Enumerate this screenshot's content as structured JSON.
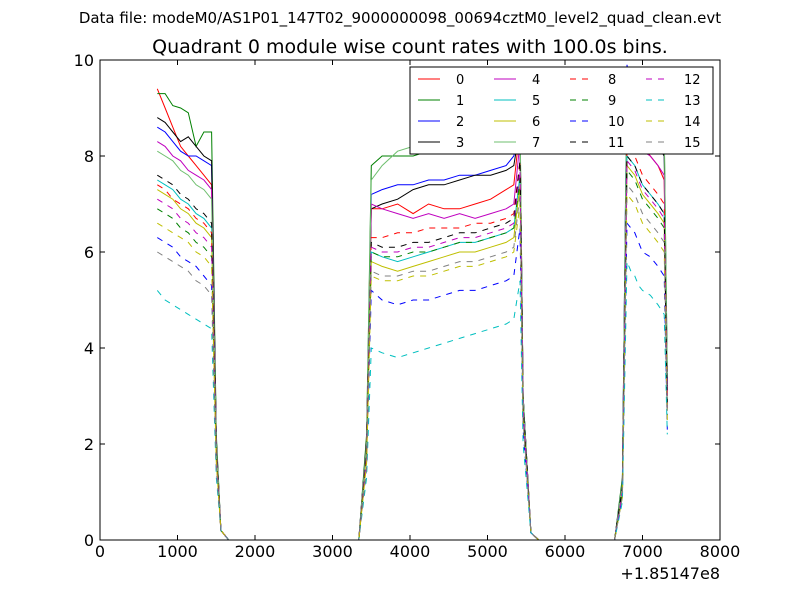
{
  "chart_data": {
    "type": "line",
    "suptitle": "Data file: modeM0/AS1P01_147T02_9000000098_00694cztM0_level2_quad_clean.evt",
    "title": "Quadrant 0 module wise count rates with 100.0s bins.",
    "xlabel": "",
    "ylabel": "",
    "x_offset_label": "+1.85147e8",
    "xlim": [
      0,
      8000
    ],
    "ylim": [
      0,
      10
    ],
    "xticks": [
      0,
      1000,
      2000,
      3000,
      4000,
      5000,
      6000,
      7000,
      8000
    ],
    "yticks": [
      0,
      2,
      4,
      6,
      8,
      10
    ],
    "grid": false,
    "legend_position": "top-right",
    "legend_columns": 4,
    "x": [
      740,
      840,
      940,
      1040,
      1140,
      1240,
      1340,
      1440,
      1500,
      1560,
      1660,
      3340,
      3440,
      3500,
      3640,
      3840,
      4040,
      4240,
      4440,
      4640,
      4840,
      5040,
      5240,
      5340,
      5420,
      5460,
      5560,
      5660,
      6640,
      6740,
      6800,
      6850,
      6900,
      6950,
      7000,
      7100,
      7200,
      7280,
      7320
    ],
    "series": [
      {
        "name": "0",
        "color": "#ff0000",
        "dash": "solid",
        "values": [
          9.4,
          9.0,
          8.6,
          8.2,
          8.0,
          7.8,
          7.6,
          7.4,
          2.0,
          0.2,
          0.0,
          0.0,
          2.0,
          6.9,
          6.9,
          7.0,
          6.8,
          7.0,
          6.9,
          6.9,
          7.0,
          7.1,
          7.3,
          7.4,
          8.6,
          3.0,
          0.15,
          0.0,
          0.0,
          1.2,
          9.0,
          8.8,
          8.6,
          8.4,
          8.2,
          8.0,
          7.8,
          7.5,
          3.0
        ]
      },
      {
        "name": "1",
        "color": "#008000",
        "dash": "solid",
        "values": [
          9.3,
          9.3,
          9.05,
          9.0,
          8.9,
          8.2,
          8.5,
          8.5,
          2.2,
          0.2,
          0.0,
          0.0,
          2.2,
          7.8,
          8.0,
          8.0,
          8.0,
          8.1,
          8.2,
          8.2,
          8.3,
          8.2,
          8.3,
          8.4,
          8.8,
          3.0,
          0.15,
          0.0,
          0.0,
          1.3,
          9.6,
          9.5,
          9.5,
          9.3,
          9.1,
          8.9,
          8.8,
          8.5,
          3.5
        ]
      },
      {
        "name": "2",
        "color": "#0000ff",
        "dash": "solid",
        "values": [
          8.6,
          8.5,
          8.3,
          8.1,
          8.0,
          8.0,
          7.9,
          7.8,
          2.0,
          0.2,
          0.0,
          0.0,
          2.0,
          7.2,
          7.3,
          7.4,
          7.4,
          7.5,
          7.5,
          7.6,
          7.6,
          7.7,
          7.8,
          8.0,
          8.5,
          3.0,
          0.15,
          0.0,
          0.0,
          1.2,
          9.9,
          9.3,
          9.0,
          8.8,
          8.7,
          8.6,
          8.5,
          8.2,
          3.2
        ]
      },
      {
        "name": "3",
        "color": "#000000",
        "dash": "solid",
        "values": [
          8.8,
          8.7,
          8.5,
          8.3,
          8.4,
          8.2,
          8.0,
          7.9,
          2.1,
          0.2,
          0.0,
          0.0,
          2.1,
          6.9,
          7.0,
          7.1,
          7.3,
          7.4,
          7.4,
          7.5,
          7.6,
          7.6,
          7.7,
          7.8,
          8.6,
          3.0,
          0.15,
          0.0,
          0.0,
          1.2,
          9.2,
          9.0,
          8.9,
          8.7,
          8.5,
          8.3,
          8.2,
          8.0,
          3.2
        ]
      },
      {
        "name": "4",
        "color": "#bf00bf",
        "dash": "solid",
        "values": [
          8.3,
          8.2,
          8.0,
          7.9,
          7.7,
          7.6,
          7.5,
          7.3,
          2.0,
          0.2,
          0.0,
          0.0,
          2.0,
          7.0,
          6.9,
          6.8,
          6.7,
          6.8,
          6.7,
          6.8,
          6.7,
          6.8,
          6.9,
          7.0,
          8.3,
          2.9,
          0.15,
          0.0,
          0.0,
          1.1,
          8.7,
          8.6,
          8.5,
          8.3,
          8.1,
          8.0,
          7.8,
          7.6,
          3.0
        ]
      },
      {
        "name": "5",
        "color": "#00bfbf",
        "dash": "solid",
        "values": [
          7.5,
          7.4,
          7.3,
          7.1,
          7.0,
          6.8,
          6.7,
          6.5,
          1.9,
          0.2,
          0.0,
          0.0,
          1.9,
          6.0,
          5.9,
          5.8,
          5.9,
          6.0,
          6.1,
          6.2,
          6.2,
          6.3,
          6.4,
          6.5,
          7.6,
          2.7,
          0.15,
          0.0,
          0.0,
          1.0,
          8.0,
          7.9,
          7.8,
          7.6,
          7.4,
          7.2,
          7.0,
          6.8,
          2.8
        ]
      },
      {
        "name": "6",
        "color": "#bfbf00",
        "dash": "solid",
        "values": [
          7.3,
          7.2,
          7.1,
          6.9,
          6.8,
          6.6,
          6.5,
          6.3,
          1.8,
          0.2,
          0.0,
          0.0,
          1.8,
          5.8,
          5.7,
          5.6,
          5.7,
          5.8,
          5.9,
          6.0,
          6.0,
          6.1,
          6.2,
          6.3,
          7.4,
          2.6,
          0.15,
          0.0,
          0.0,
          1.0,
          7.8,
          7.7,
          7.6,
          7.4,
          7.2,
          7.0,
          6.8,
          6.6,
          2.7
        ]
      },
      {
        "name": "7",
        "color": "#6fbf6f",
        "dash": "solid",
        "values": [
          8.1,
          8.0,
          7.9,
          7.7,
          7.6,
          7.4,
          7.3,
          7.1,
          2.0,
          0.2,
          0.0,
          0.0,
          2.0,
          7.5,
          7.8,
          8.1,
          8.2,
          8.4,
          8.3,
          8.5,
          8.6,
          8.6,
          8.7,
          8.8,
          8.9,
          3.0,
          0.15,
          0.0,
          0.0,
          1.2,
          9.8,
          9.6,
          9.5,
          9.4,
          9.2,
          9.0,
          8.8,
          8.6,
          3.4
        ]
      },
      {
        "name": "8",
        "color": "#ff0000",
        "dash": "dashed",
        "values": [
          7.4,
          7.3,
          7.1,
          7.0,
          6.9,
          6.7,
          6.6,
          6.4,
          1.8,
          0.2,
          0.0,
          0.0,
          1.8,
          6.3,
          6.3,
          6.4,
          6.4,
          6.5,
          6.5,
          6.5,
          6.6,
          6.6,
          6.7,
          6.8,
          7.9,
          2.7,
          0.15,
          0.0,
          0.0,
          1.0,
          8.2,
          8.1,
          8.0,
          7.8,
          7.6,
          7.4,
          7.2,
          7.0,
          2.9
        ]
      },
      {
        "name": "9",
        "color": "#008000",
        "dash": "dashed",
        "values": [
          6.9,
          6.8,
          6.7,
          6.5,
          6.4,
          6.2,
          6.1,
          5.9,
          1.7,
          0.2,
          0.0,
          0.0,
          1.7,
          6.0,
          5.9,
          5.9,
          6.0,
          6.0,
          6.1,
          6.2,
          6.2,
          6.3,
          6.4,
          6.5,
          7.5,
          2.6,
          0.15,
          0.0,
          0.0,
          1.0,
          7.7,
          7.6,
          7.5,
          7.3,
          7.1,
          6.9,
          6.7,
          6.5,
          2.6
        ]
      },
      {
        "name": "10",
        "color": "#0000ff",
        "dash": "dashed",
        "values": [
          6.3,
          6.2,
          6.1,
          5.9,
          5.8,
          5.7,
          5.5,
          5.3,
          1.5,
          0.2,
          0.0,
          0.0,
          1.5,
          5.2,
          5.0,
          4.9,
          5.0,
          5.0,
          5.1,
          5.2,
          5.2,
          5.3,
          5.4,
          5.5,
          6.5,
          2.3,
          0.15,
          0.0,
          0.0,
          0.9,
          6.6,
          6.5,
          6.4,
          6.2,
          6.0,
          5.9,
          5.7,
          5.5,
          2.3
        ]
      },
      {
        "name": "11",
        "color": "#000000",
        "dash": "dashed",
        "values": [
          7.6,
          7.5,
          7.4,
          7.2,
          7.1,
          6.9,
          6.8,
          6.6,
          1.8,
          0.2,
          0.0,
          0.0,
          1.8,
          6.2,
          6.1,
          6.1,
          6.2,
          6.2,
          6.3,
          6.4,
          6.4,
          6.5,
          6.6,
          6.7,
          7.9,
          2.8,
          0.15,
          0.0,
          0.0,
          1.1,
          8.0,
          7.9,
          7.8,
          7.6,
          7.4,
          7.2,
          7.0,
          6.8,
          2.8
        ]
      },
      {
        "name": "12",
        "color": "#bf00bf",
        "dash": "dashed",
        "values": [
          7.1,
          7.0,
          6.9,
          6.7,
          6.6,
          6.4,
          6.3,
          6.1,
          1.7,
          0.2,
          0.0,
          0.0,
          1.7,
          6.1,
          6.0,
          6.0,
          6.1,
          6.1,
          6.2,
          6.3,
          6.3,
          6.4,
          6.5,
          6.6,
          7.7,
          2.7,
          0.15,
          0.0,
          0.0,
          1.0,
          7.9,
          7.8,
          7.7,
          7.5,
          7.3,
          7.1,
          6.9,
          6.7,
          2.7
        ]
      },
      {
        "name": "13",
        "color": "#00bfbf",
        "dash": "dashed",
        "values": [
          5.2,
          5.0,
          4.9,
          4.8,
          4.7,
          4.6,
          4.5,
          4.4,
          1.3,
          0.2,
          0.0,
          0.0,
          1.3,
          4.0,
          3.9,
          3.8,
          3.9,
          4.0,
          4.1,
          4.2,
          4.3,
          4.4,
          4.5,
          4.6,
          5.4,
          2.0,
          0.15,
          0.0,
          0.0,
          0.8,
          5.8,
          5.6,
          5.5,
          5.3,
          5.2,
          5.1,
          4.9,
          4.7,
          2.2
        ]
      },
      {
        "name": "14",
        "color": "#bfbf00",
        "dash": "dashed",
        "values": [
          6.6,
          6.5,
          6.4,
          6.3,
          6.2,
          6.0,
          5.9,
          5.7,
          1.6,
          0.2,
          0.0,
          0.0,
          1.6,
          5.5,
          5.4,
          5.4,
          5.5,
          5.5,
          5.6,
          5.7,
          5.7,
          5.8,
          5.9,
          6.0,
          7.0,
          2.5,
          0.15,
          0.0,
          0.0,
          0.9,
          7.2,
          7.1,
          7.0,
          6.8,
          6.6,
          6.4,
          6.2,
          6.0,
          2.5
        ]
      },
      {
        "name": "15",
        "color": "#808080",
        "dash": "dashed",
        "values": [
          6.0,
          5.9,
          5.8,
          5.7,
          5.6,
          5.4,
          5.3,
          5.1,
          1.5,
          0.2,
          0.0,
          0.0,
          1.5,
          5.6,
          5.5,
          5.5,
          5.6,
          5.6,
          5.7,
          5.8,
          5.8,
          5.9,
          6.0,
          6.1,
          7.2,
          2.5,
          0.15,
          0.0,
          0.0,
          0.9,
          7.4,
          7.3,
          7.2,
          7.0,
          6.8,
          6.6,
          6.4,
          6.2,
          2.6
        ]
      }
    ]
  }
}
